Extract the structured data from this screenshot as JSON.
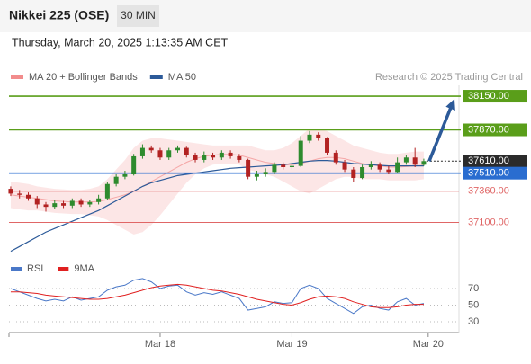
{
  "chart_data": {
    "type": "candlestick",
    "title": "Nikkei 225 (OSE)",
    "timeframe": "30 MIN",
    "subtitle": "Thursday, March 20, 2025 1:13:35 AM CET",
    "source": "Research © 2025 Trading Central",
    "up_color": "#2e8b2e",
    "down_color": "#b22222",
    "xlim": [
      -0.2,
      51
    ],
    "xticks": [
      {
        "value": 17,
        "label": "Mar 18"
      },
      {
        "value": 32,
        "label": "Mar 19"
      },
      {
        "value": 47.5,
        "label": "Mar 20"
      }
    ],
    "ylim": [
      36820,
      38240
    ],
    "open": [
      37380,
      37340,
      37330,
      37300,
      37250,
      37230,
      37260,
      37240,
      37280,
      37250,
      37270,
      37300,
      37420,
      37480,
      37500,
      37650,
      37720,
      37700,
      37640,
      37700,
      37720,
      37660,
      37620,
      37660,
      37640,
      37680,
      37650,
      37620,
      37480,
      37500,
      37520,
      37580,
      37560,
      37570,
      37780,
      37830,
      37800,
      37680,
      37600,
      37540,
      37470,
      37560,
      37580,
      37540,
      37520,
      37600,
      37640,
      37580
    ],
    "high": [
      37400,
      37370,
      37350,
      37320,
      37270,
      37290,
      37280,
      37300,
      37300,
      37290,
      37330,
      37440,
      37500,
      37530,
      37670,
      37750,
      37740,
      37720,
      37720,
      37740,
      37730,
      37680,
      37690,
      37680,
      37700,
      37700,
      37670,
      37630,
      37530,
      37550,
      37600,
      37600,
      37600,
      37820,
      37860,
      37850,
      37810,
      37700,
      37620,
      37560,
      37580,
      37610,
      37600,
      37570,
      37640,
      37660,
      37720,
      37630
    ],
    "low": [
      37320,
      37300,
      37280,
      37220,
      37190,
      37210,
      37220,
      37220,
      37230,
      37230,
      37250,
      37290,
      37400,
      37460,
      37490,
      37630,
      37680,
      37620,
      37620,
      37680,
      37640,
      37600,
      37600,
      37620,
      37620,
      37630,
      37600,
      37460,
      37450,
      37480,
      37500,
      37540,
      37540,
      37560,
      37760,
      37780,
      37660,
      37580,
      37520,
      37440,
      37460,
      37540,
      37520,
      37500,
      37510,
      37580,
      37560,
      37570
    ],
    "close": [
      37340,
      37330,
      37300,
      37250,
      37230,
      37260,
      37240,
      37280,
      37250,
      37270,
      37300,
      37420,
      37480,
      37500,
      37650,
      37720,
      37700,
      37640,
      37700,
      37720,
      37660,
      37620,
      37660,
      37640,
      37680,
      37650,
      37620,
      37480,
      37500,
      37520,
      37580,
      37560,
      37570,
      37780,
      37830,
      37800,
      37680,
      37600,
      37540,
      37470,
      37560,
      37580,
      37540,
      37520,
      37600,
      37640,
      37580,
      37610
    ],
    "series": [
      {
        "name": "MA 20 + Bollinger Bands",
        "color": "#f28c8c",
        "values": [
          37330,
          37320,
          37310,
          37300,
          37290,
          37280,
          37275,
          37270,
          37270,
          37270,
          37275,
          37290,
          37310,
          37330,
          37360,
          37400,
          37440,
          37480,
          37520,
          37560,
          37600,
          37630,
          37650,
          37660,
          37665,
          37665,
          37660,
          37640,
          37620,
          37600,
          37590,
          37580,
          37580,
          37590,
          37610,
          37630,
          37640,
          37640,
          37630,
          37610,
          37590,
          37580,
          37570,
          37560,
          37560,
          37565,
          37570,
          37575
        ],
        "upper": [
          37440,
          37430,
          37420,
          37400,
          37390,
          37380,
          37375,
          37370,
          37370,
          37380,
          37400,
          37460,
          37540,
          37620,
          37720,
          37780,
          37800,
          37800,
          37790,
          37780,
          37770,
          37760,
          37750,
          37740,
          37740,
          37740,
          37740,
          37740,
          37720,
          37700,
          37700,
          37720,
          37760,
          37820,
          37880,
          37880,
          37860,
          37820,
          37780,
          37740,
          37720,
          37700,
          37680,
          37670,
          37670,
          37680,
          37690,
          37690
        ],
        "lower": [
          37220,
          37210,
          37200,
          37200,
          37190,
          37180,
          37175,
          37170,
          37170,
          37160,
          37150,
          37120,
          37080,
          37040,
          37000,
          37020,
          37080,
          37160,
          37250,
          37340,
          37430,
          37500,
          37550,
          37580,
          37590,
          37590,
          37580,
          37540,
          37520,
          37500,
          37480,
          37440,
          37400,
          37360,
          37340,
          37380,
          37420,
          37460,
          37480,
          37480,
          37460,
          37460,
          37460,
          37450,
          37450,
          37450,
          37450,
          37460
        ]
      },
      {
        "name": "MA 50",
        "color": "#2c5a99",
        "values": [
          36860,
          36900,
          36940,
          36980,
          37020,
          37050,
          37080,
          37110,
          37140,
          37170,
          37200,
          37240,
          37280,
          37320,
          37360,
          37400,
          37430,
          37450,
          37470,
          37490,
          37500,
          37510,
          37520,
          37530,
          37540,
          37550,
          37555,
          37560,
          37565,
          37570,
          37575,
          37580,
          37590,
          37600,
          37610,
          37615,
          37615,
          37610,
          37600,
          37590,
          37585,
          37580,
          37575,
          37570,
          37570,
          37570,
          37570,
          37570
        ]
      }
    ],
    "levels": [
      {
        "value": 38150,
        "label": "38150.00",
        "color": "#5a9e1a",
        "kind": "box"
      },
      {
        "value": 37870,
        "label": "37870.00",
        "color": "#5a9e1a",
        "kind": "box"
      },
      {
        "value": 37610,
        "label": "37610.00",
        "color": "#2b2b2b",
        "kind": "box",
        "dashed": true
      },
      {
        "value": 37510,
        "label": "37510.00",
        "color": "#2a6dd0",
        "kind": "box"
      },
      {
        "value": 37360,
        "label": "37360.00",
        "color": "#e06666",
        "kind": "text"
      },
      {
        "value": 37100,
        "label": "37100.00",
        "color": "#e06666",
        "kind": "text"
      }
    ],
    "target": 38150,
    "arrow_color": "#2c5a99",
    "rsi": {
      "ylim": [
        20,
        82
      ],
      "yticks": [
        30,
        50,
        70
      ],
      "grid": true,
      "series": [
        {
          "name": "RSI",
          "color": "#4a78c8",
          "values": [
            70,
            66,
            62,
            58,
            55,
            57,
            55,
            60,
            56,
            58,
            60,
            68,
            72,
            74,
            80,
            82,
            78,
            70,
            73,
            74,
            66,
            62,
            65,
            63,
            66,
            62,
            58,
            44,
            46,
            48,
            54,
            52,
            53,
            70,
            74,
            70,
            58,
            52,
            46,
            40,
            48,
            50,
            46,
            44,
            54,
            58,
            50,
            52
          ]
        },
        {
          "name": "9MA",
          "color": "#e02020",
          "values": [
            66,
            66,
            65,
            64,
            62,
            61,
            60,
            59,
            58,
            57,
            57,
            58,
            60,
            62,
            65,
            68,
            71,
            73,
            74,
            75,
            74,
            72,
            70,
            68,
            67,
            65,
            63,
            60,
            57,
            55,
            53,
            51,
            50,
            53,
            57,
            60,
            61,
            60,
            58,
            54,
            51,
            48,
            47,
            47,
            48,
            50,
            51,
            51
          ]
        }
      ]
    }
  }
}
